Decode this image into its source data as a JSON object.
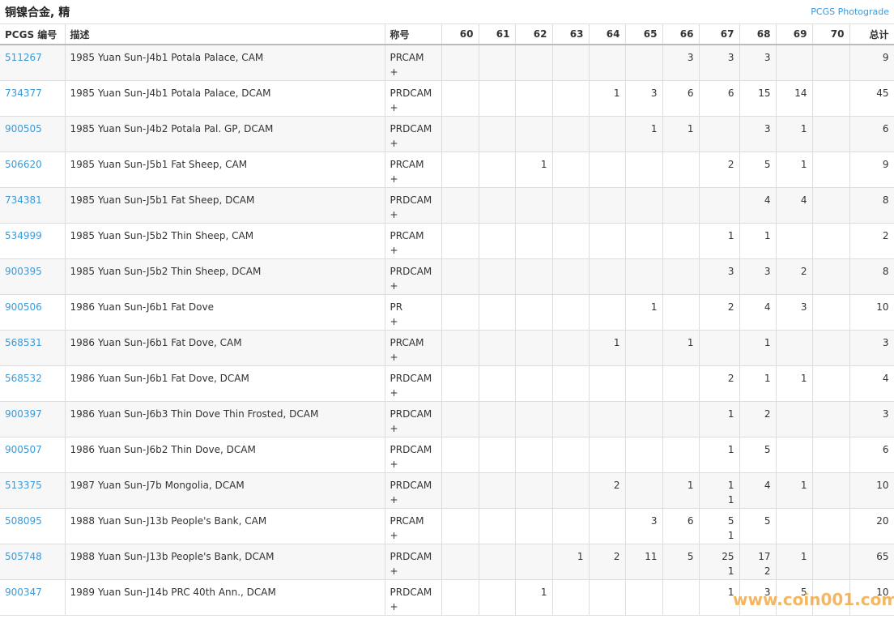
{
  "header": {
    "title": "铜镍合金, 精",
    "link": "PCGS Photograde"
  },
  "table": {
    "columns": [
      "PCGS 编号",
      "描述",
      "称号",
      "60",
      "61",
      "62",
      "63",
      "64",
      "65",
      "66",
      "67",
      "68",
      "69",
      "70",
      "总计"
    ],
    "rows": [
      {
        "id": "511267",
        "description": "1985 Yuan Sun-J4b1 Potala Palace, CAM",
        "designation": "PRCAM",
        "plus": "+",
        "grades": [
          null,
          null,
          null,
          null,
          null,
          null,
          3,
          3,
          3,
          null,
          null
        ],
        "total": 9
      },
      {
        "id": "734377",
        "description": "1985 Yuan Sun-J4b1 Potala Palace, DCAM",
        "designation": "PRDCAM",
        "plus": "+",
        "grades": [
          null,
          null,
          null,
          null,
          1,
          3,
          6,
          6,
          15,
          14,
          null
        ],
        "total": 45
      },
      {
        "id": "900505",
        "description": "1985 Yuan Sun-J4b2 Potala Pal. GP, DCAM",
        "designation": "PRDCAM",
        "plus": "+",
        "grades": [
          null,
          null,
          null,
          null,
          null,
          1,
          1,
          null,
          3,
          1,
          null
        ],
        "total": 6
      },
      {
        "id": "506620",
        "description": "1985 Yuan Sun-J5b1 Fat Sheep, CAM",
        "designation": "PRCAM",
        "plus": "+",
        "grades": [
          null,
          null,
          1,
          null,
          null,
          null,
          null,
          2,
          5,
          1,
          null
        ],
        "total": 9
      },
      {
        "id": "734381",
        "description": "1985 Yuan Sun-J5b1 Fat Sheep, DCAM",
        "designation": "PRDCAM",
        "plus": "+",
        "grades": [
          null,
          null,
          null,
          null,
          null,
          null,
          null,
          null,
          4,
          4,
          null
        ],
        "total": 8
      },
      {
        "id": "534999",
        "description": "1985 Yuan Sun-J5b2 Thin Sheep, CAM",
        "designation": "PRCAM",
        "plus": "+",
        "grades": [
          null,
          null,
          null,
          null,
          null,
          null,
          null,
          1,
          1,
          null,
          null
        ],
        "total": 2
      },
      {
        "id": "900395",
        "description": "1985 Yuan Sun-J5b2 Thin Sheep, DCAM",
        "designation": "PRDCAM",
        "plus": "+",
        "grades": [
          null,
          null,
          null,
          null,
          null,
          null,
          null,
          3,
          3,
          2,
          null
        ],
        "total": 8
      },
      {
        "id": "900506",
        "description": "1986 Yuan Sun-J6b1 Fat Dove",
        "designation": "PR",
        "plus": "+",
        "grades": [
          null,
          null,
          null,
          null,
          null,
          1,
          null,
          2,
          4,
          3,
          null
        ],
        "total": 10
      },
      {
        "id": "568531",
        "description": "1986 Yuan Sun-J6b1 Fat Dove, CAM",
        "designation": "PRCAM",
        "plus": "+",
        "grades": [
          null,
          null,
          null,
          null,
          1,
          null,
          1,
          null,
          1,
          null,
          null
        ],
        "total": 3
      },
      {
        "id": "568532",
        "description": "1986 Yuan Sun-J6b1 Fat Dove, DCAM",
        "designation": "PRDCAM",
        "plus": "+",
        "grades": [
          null,
          null,
          null,
          null,
          null,
          null,
          null,
          2,
          1,
          1,
          null
        ],
        "total": 4
      },
      {
        "id": "900397",
        "description": "1986 Yuan Sun-J6b3 Thin Dove Thin Frosted, DCAM",
        "designation": "PRDCAM",
        "plus": "+",
        "grades": [
          null,
          null,
          null,
          null,
          null,
          null,
          null,
          1,
          2,
          null,
          null
        ],
        "total": 3
      },
      {
        "id": "900507",
        "description": "1986 Yuan Sun-J6b2 Thin Dove, DCAM",
        "designation": "PRDCAM",
        "plus": "+",
        "grades": [
          null,
          null,
          null,
          null,
          null,
          null,
          null,
          1,
          5,
          null,
          null
        ],
        "total": 6
      },
      {
        "id": "513375",
        "description": "1987 Yuan Sun-J7b Mongolia, DCAM",
        "designation": "PRDCAM",
        "plus": "+",
        "grades": [
          null,
          null,
          null,
          null,
          2,
          null,
          1,
          [
            1,
            1
          ],
          4,
          1,
          null
        ],
        "total": 10
      },
      {
        "id": "508095",
        "description": "1988 Yuan Sun-J13b People's Bank, CAM",
        "designation": "PRCAM",
        "plus": "+",
        "grades": [
          null,
          null,
          null,
          null,
          null,
          3,
          6,
          [
            5,
            1
          ],
          5,
          null,
          null
        ],
        "total": 20
      },
      {
        "id": "505748",
        "description": "1988 Yuan Sun-J13b People's Bank, DCAM",
        "designation": "PRDCAM",
        "plus": "+",
        "grades": [
          null,
          null,
          null,
          1,
          2,
          11,
          5,
          [
            25,
            1
          ],
          [
            17,
            2
          ],
          1,
          null
        ],
        "total": 65
      },
      {
        "id": "900347",
        "description": "1989 Yuan Sun-J14b PRC 40th Ann., DCAM",
        "designation": "PRDCAM",
        "plus": "+",
        "grades": [
          null,
          null,
          1,
          null,
          null,
          null,
          null,
          1,
          3,
          5,
          null
        ],
        "total": 10
      }
    ]
  },
  "watermark": "www.coin001.com"
}
